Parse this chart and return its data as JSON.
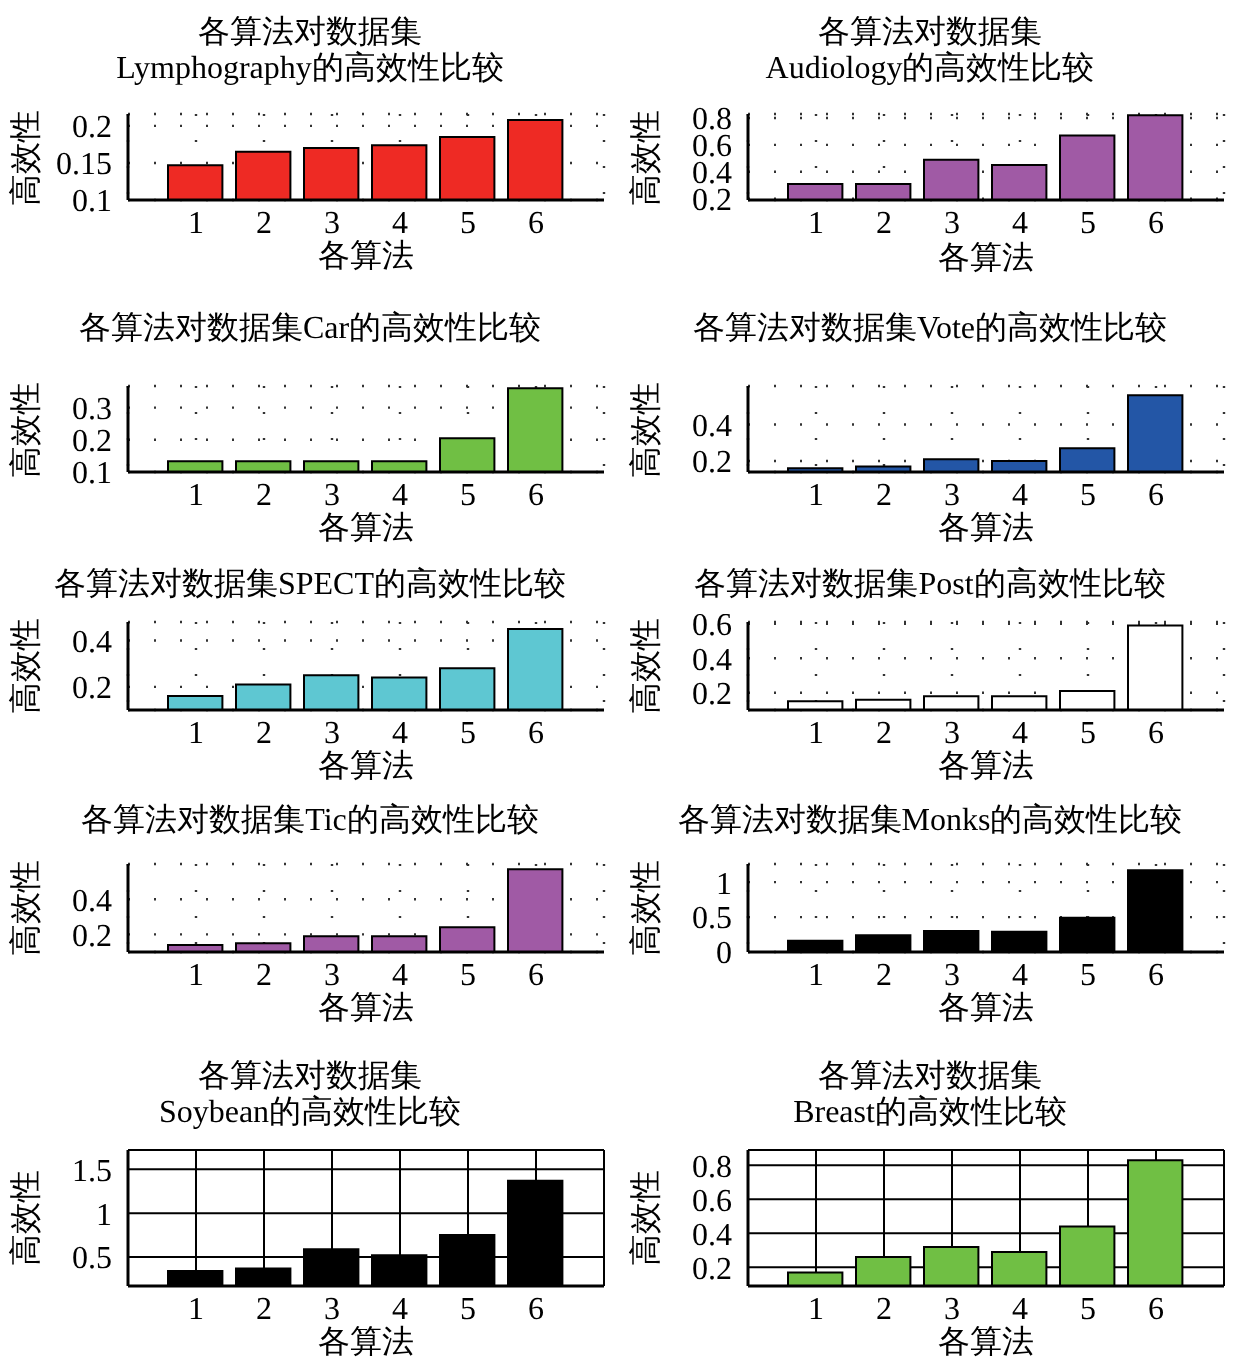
{
  "chart_data": [
    {
      "type": "bar",
      "title": "各算法对数据集\nLymphography的高效性比较",
      "xlabel": "各算法",
      "ylabel": "高效性",
      "x": [
        1,
        2,
        3,
        4,
        5,
        6
      ],
      "xlim": [
        0,
        7
      ],
      "xticks": [
        1,
        2,
        3,
        4,
        5,
        6
      ],
      "values": [
        0.147,
        0.165,
        0.17,
        0.174,
        0.185,
        0.208
      ],
      "color": "#ee2a24",
      "ylim": [
        0.1,
        0.216
      ],
      "yticks": [
        0.1,
        0.15,
        0.2
      ],
      "grid": true
    },
    {
      "type": "bar",
      "title": "各算法对数据集\nAudiology的高效性比较",
      "xlabel": "各算法",
      "ylabel": "高效性",
      "x": [
        1,
        2,
        3,
        4,
        5,
        6
      ],
      "xlim": [
        0,
        7
      ],
      "xticks": [
        1,
        2,
        3,
        4,
        5,
        6
      ],
      "values": [
        0.31,
        0.31,
        0.49,
        0.45,
        0.67,
        0.82
      ],
      "color": "#a05aa5",
      "ylim": [
        0.19,
        0.83
      ],
      "yticks": [
        0.2,
        0.4,
        0.6,
        0.8
      ],
      "grid": true
    },
    {
      "type": "bar",
      "title": "各算法对数据集Car的高效性比较",
      "xlabel": "各算法",
      "ylabel": "高效性",
      "x": [
        1,
        2,
        3,
        4,
        5,
        6
      ],
      "xlim": [
        0,
        7
      ],
      "xticks": [
        1,
        2,
        3,
        4,
        5,
        6
      ],
      "values": [
        0.133,
        0.133,
        0.133,
        0.133,
        0.205,
        0.36
      ],
      "color": "#70bf44",
      "ylim": [
        0.1,
        0.367
      ],
      "yticks": [
        0.1,
        0.2,
        0.3
      ],
      "grid": true
    },
    {
      "type": "bar",
      "title": "各算法对数据集Vote的高效性比较",
      "xlabel": "各算法",
      "ylabel": "高效性",
      "x": [
        1,
        2,
        3,
        4,
        5,
        6
      ],
      "xlim": [
        0,
        7
      ],
      "xticks": [
        1,
        2,
        3,
        4,
        5,
        6
      ],
      "values": [
        0.16,
        0.17,
        0.21,
        0.2,
        0.27,
        0.56
      ],
      "color": "#2356a6",
      "ylim": [
        0.14,
        0.61
      ],
      "yticks": [
        0.2,
        0.4
      ],
      "grid": true
    },
    {
      "type": "bar",
      "title": "各算法对数据集SPECT的高效性比较",
      "xlabel": "各算法",
      "ylabel": "高效性",
      "x": [
        1,
        2,
        3,
        4,
        5,
        6
      ],
      "xlim": [
        0,
        7
      ],
      "xticks": [
        1,
        2,
        3,
        4,
        5,
        6
      ],
      "values": [
        0.16,
        0.21,
        0.25,
        0.24,
        0.28,
        0.45
      ],
      "color": "#5ec7d2",
      "ylim": [
        0.1,
        0.48
      ],
      "yticks": [
        0.2,
        0.4
      ],
      "grid": true
    },
    {
      "type": "bar",
      "title": "各算法对数据集Post的高效性比较",
      "xlabel": "各算法",
      "ylabel": "高效性",
      "x": [
        1,
        2,
        3,
        4,
        5,
        6
      ],
      "xlim": [
        0,
        7
      ],
      "xticks": [
        1,
        2,
        3,
        4,
        5,
        6
      ],
      "values": [
        0.15,
        0.16,
        0.18,
        0.18,
        0.21,
        0.59
      ],
      "color": "#ffffff",
      "ylim": [
        0.1,
        0.61
      ],
      "yticks": [
        0.2,
        0.4,
        0.6
      ],
      "grid": true
    },
    {
      "type": "bar",
      "title": "各算法对数据集Tic的高效性比较",
      "xlabel": "各算法",
      "ylabel": "高效性",
      "x": [
        1,
        2,
        3,
        4,
        5,
        6
      ],
      "xlim": [
        0,
        7
      ],
      "xticks": [
        1,
        2,
        3,
        4,
        5,
        6
      ],
      "values": [
        0.14,
        0.15,
        0.19,
        0.19,
        0.24,
        0.57
      ],
      "color": "#a05aa5",
      "ylim": [
        0.1,
        0.6
      ],
      "yticks": [
        0.2,
        0.4
      ],
      "grid": true
    },
    {
      "type": "bar",
      "title": "各算法对数据集Monks的高效性比较",
      "xlabel": "各算法",
      "ylabel": "高效性",
      "x": [
        1,
        2,
        3,
        4,
        5,
        6
      ],
      "xlim": [
        0,
        7
      ],
      "xticks": [
        1,
        2,
        3,
        4,
        5,
        6
      ],
      "values": [
        0.16,
        0.24,
        0.3,
        0.29,
        0.49,
        1.17
      ],
      "color": "#000000",
      "ylim": [
        0,
        1.26
      ],
      "yticks": [
        0,
        0.5,
        1
      ],
      "grid": true
    },
    {
      "type": "bar",
      "title": "各算法对数据集\nSoybean的高效性比较",
      "xlabel": "各算法",
      "ylabel": "高效性",
      "x": [
        1,
        2,
        3,
        4,
        5,
        6
      ],
      "xlim": [
        0,
        7
      ],
      "xticks": [
        1,
        2,
        3,
        4,
        5,
        6
      ],
      "values": [
        0.34,
        0.37,
        0.59,
        0.52,
        0.75,
        1.37
      ],
      "color": "#000000",
      "ylim": [
        0.17,
        1.72
      ],
      "yticks": [
        0.5,
        1,
        1.5
      ],
      "grid": true
    },
    {
      "type": "bar",
      "title": "各算法对数据集\nBreast的高效性比较",
      "xlabel": "各算法",
      "ylabel": "高效性",
      "x": [
        1,
        2,
        3,
        4,
        5,
        6
      ],
      "xlim": [
        0,
        7
      ],
      "xticks": [
        1,
        2,
        3,
        4,
        5,
        6
      ],
      "values": [
        0.17,
        0.26,
        0.32,
        0.29,
        0.44,
        0.83
      ],
      "color": "#70bf44",
      "ylim": [
        0.09,
        0.89
      ],
      "yticks": [
        0.2,
        0.4,
        0.6,
        0.8
      ],
      "grid": true
    }
  ]
}
